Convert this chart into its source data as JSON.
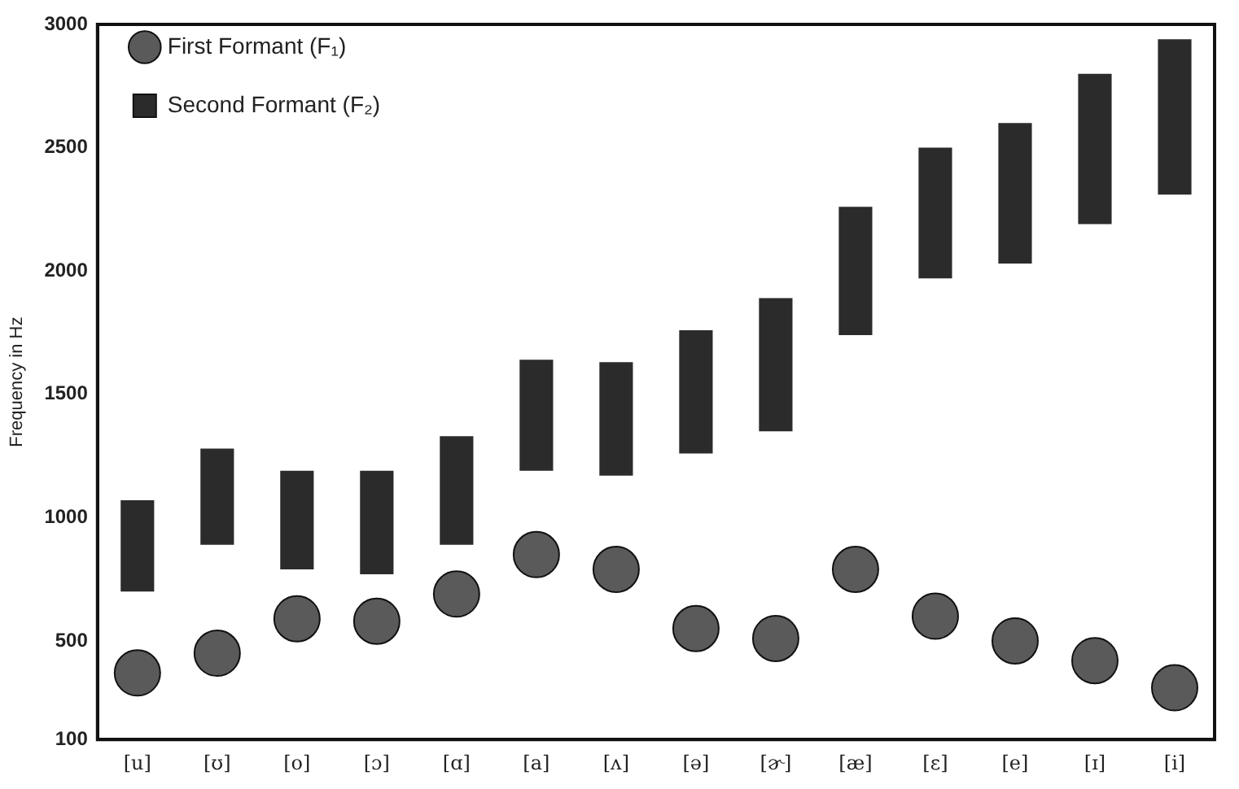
{
  "chart_data": {
    "type": "bar",
    "ylabel": "Frequency in Hz",
    "categories": [
      "[u]",
      "[ʊ]",
      "[o]",
      "[ɔ]",
      "[ɑ]",
      "[a]",
      "[ʌ]",
      "[ə]",
      "[ɚ]",
      "[æ]",
      "[ɛ]",
      "[e]",
      "[ɪ]",
      "[i]"
    ],
    "series": [
      {
        "name": "First Formant (F₁)",
        "type": "scatter",
        "marker": "circle",
        "color": "#5a5a5a",
        "values": [
          370,
          450,
          590,
          580,
          690,
          850,
          790,
          550,
          510,
          790,
          600,
          500,
          420,
          310
        ]
      },
      {
        "name": "Second Formant (F₂)",
        "color": "#2b2b2b",
        "base": [
          700,
          890,
          790,
          770,
          890,
          1190,
          1170,
          1260,
          1350,
          1740,
          1970,
          2030,
          2190,
          2310
        ],
        "values": [
          370,
          390,
          400,
          420,
          440,
          450,
          460,
          500,
          540,
          520,
          530,
          570,
          610,
          630
        ]
      }
    ],
    "ylim": [
      100,
      3000
    ],
    "yticks": [
      100,
      500,
      1000,
      1500,
      2000,
      2500,
      3000
    ],
    "grid": false,
    "legend": "top left"
  }
}
